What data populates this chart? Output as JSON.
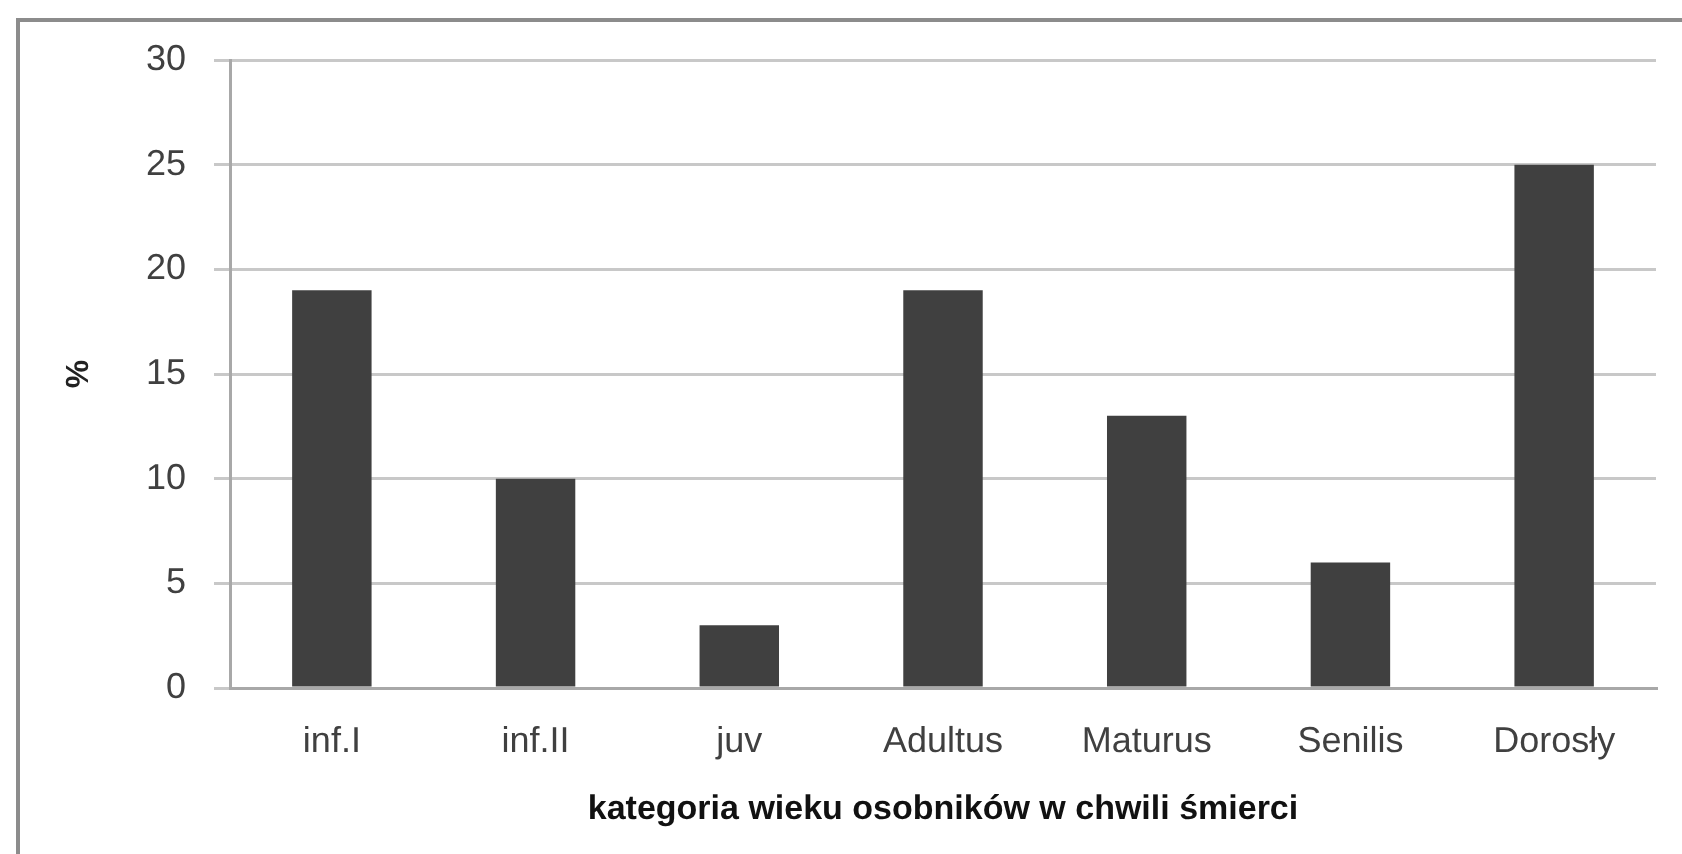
{
  "chart_data": {
    "type": "bar",
    "xlabel": "kategoria wieku osobników w chwili śmierci",
    "ylabel": "%",
    "categories": [
      "inf.I",
      "inf.II",
      "juv",
      "Adultus",
      "Maturus",
      "Senilis",
      "Dorosły"
    ],
    "values": [
      19,
      10,
      3,
      19,
      13,
      6,
      25
    ],
    "color": "#404040",
    "ylim": [
      0,
      30
    ],
    "yticks": [
      0,
      5,
      10,
      15,
      20,
      25,
      30
    ],
    "grid": "y"
  }
}
